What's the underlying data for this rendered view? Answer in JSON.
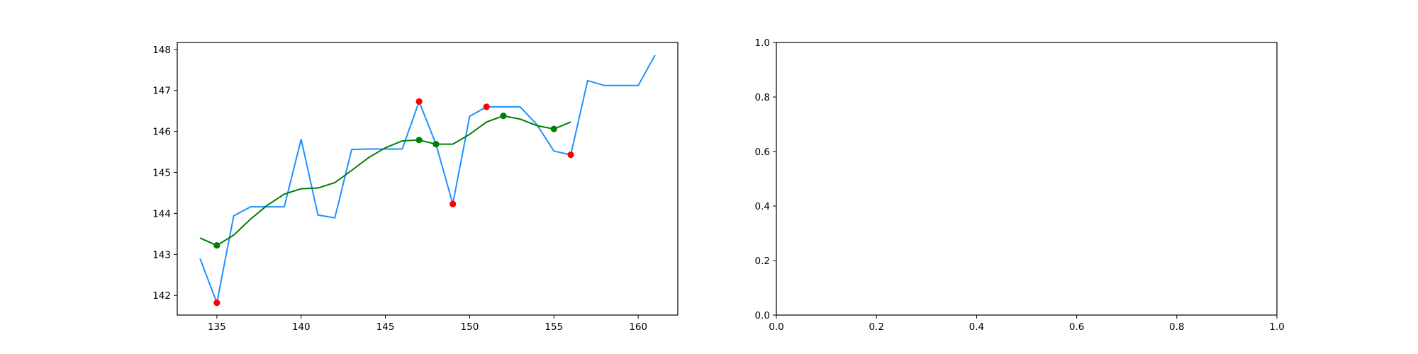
{
  "chart_data": [
    {
      "type": "line",
      "xlim": [
        132.65,
        162.35
      ],
      "ylim": [
        141.52,
        148.17
      ],
      "xticks": [
        135,
        140,
        145,
        150,
        155,
        160
      ],
      "yticks": [
        142,
        143,
        144,
        145,
        146,
        147,
        148
      ],
      "grid": false,
      "series": [
        {
          "kind": "line",
          "color": "#1e90ff",
          "x": [
            134,
            135,
            136,
            137,
            138,
            139,
            140,
            141,
            142,
            143,
            144,
            145,
            146,
            147,
            148,
            149,
            150,
            151,
            152,
            153,
            154,
            155,
            156,
            157,
            158,
            159,
            160,
            161
          ],
          "y": [
            142.9,
            141.82,
            143.94,
            144.16,
            144.16,
            144.16,
            145.81,
            143.96,
            143.89,
            145.56,
            145.57,
            145.57,
            145.57,
            146.73,
            145.69,
            144.23,
            146.37,
            146.6,
            146.6,
            146.6,
            146.16,
            145.52,
            145.43,
            147.24,
            147.12,
            147.12,
            147.12,
            147.86
          ]
        },
        {
          "kind": "line",
          "color": "#008000",
          "x": [
            134,
            135,
            136,
            137,
            138,
            139,
            140,
            141,
            142,
            143,
            144,
            145,
            146,
            147,
            148,
            149,
            150,
            151,
            152,
            153,
            154,
            155,
            156
          ],
          "y": [
            143.4,
            143.22,
            143.47,
            143.86,
            144.2,
            144.47,
            144.6,
            144.62,
            144.75,
            145.05,
            145.36,
            145.6,
            145.77,
            145.79,
            145.69,
            145.69,
            145.93,
            146.23,
            146.38,
            146.3,
            146.14,
            146.06,
            146.23
          ]
        },
        {
          "kind": "scatter",
          "color": "#ff0000",
          "x": [
            135,
            147,
            149,
            151,
            156
          ],
          "y": [
            141.82,
            146.73,
            144.23,
            146.6,
            145.43
          ]
        },
        {
          "kind": "scatter",
          "color": "#008000",
          "x": [
            135,
            147,
            148,
            152,
            155
          ],
          "y": [
            143.22,
            145.79,
            145.69,
            146.38,
            146.06
          ]
        }
      ]
    },
    {
      "type": "line",
      "xlim": [
        0.0,
        1.0
      ],
      "ylim": [
        0.0,
        1.0
      ],
      "xticks": [
        0.0,
        0.2,
        0.4,
        0.6,
        0.8,
        1.0
      ],
      "yticks": [
        0.0,
        0.2,
        0.4,
        0.6,
        0.8,
        1.0
      ],
      "xtick_labels": [
        "0.0",
        "0.2",
        "0.4",
        "0.6",
        "0.8",
        "1.0"
      ],
      "ytick_labels": [
        "0.0",
        "0.2",
        "0.4",
        "0.6",
        "0.8",
        "1.0"
      ],
      "grid": false,
      "series": []
    }
  ]
}
